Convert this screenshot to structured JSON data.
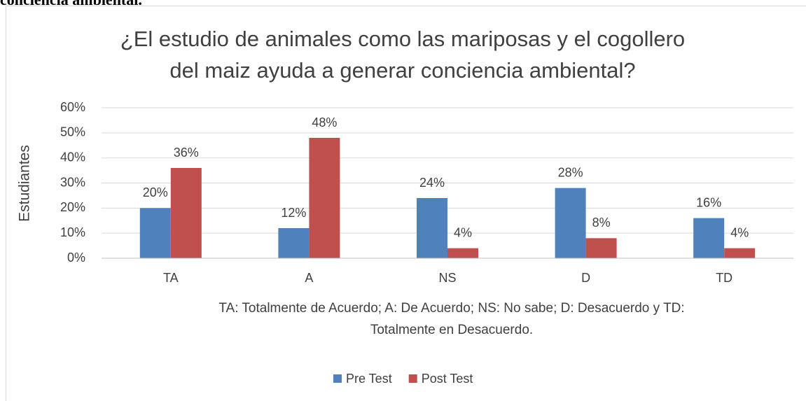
{
  "context_text": "conciencia ambiental.",
  "chart_data": {
    "type": "bar",
    "title": [
      "¿El estudio de animales como las mariposas y el cogollero",
      "del maiz ayuda a generar conciencia ambiental?"
    ],
    "y_label": "Estudiantes",
    "annotation": [
      "TA: Totalmente de Acuerdo; A: De Acuerdo; NS: No sabe; D: Desacuerdo y TD:",
      "Totalmente en Desacuerdo."
    ],
    "categories": [
      "TA",
      "A",
      "NS",
      "D",
      "TD"
    ],
    "series": [
      {
        "name": "Pre Test",
        "color": "#4f81bd",
        "values": [
          20,
          12,
          24,
          28,
          16
        ],
        "value_labels": [
          "20%",
          "12%",
          "24%",
          "28%",
          "16%"
        ]
      },
      {
        "name": "Post Test",
        "color": "#c0504d",
        "values": [
          36,
          48,
          4,
          8,
          4
        ],
        "value_labels": [
          "36%",
          "48%",
          "4%",
          "8%",
          "4%"
        ]
      }
    ],
    "ylim": [
      0,
      60
    ],
    "yticks": [
      {
        "value": 0,
        "label": "0%"
      },
      {
        "value": 10,
        "label": "10%"
      },
      {
        "value": 20,
        "label": "20%"
      },
      {
        "value": 30,
        "label": "30%"
      },
      {
        "value": 40,
        "label": "40%"
      },
      {
        "value": 50,
        "label": "50%"
      },
      {
        "value": 60,
        "label": "60%"
      }
    ],
    "grid": true,
    "legend": "bottom"
  }
}
